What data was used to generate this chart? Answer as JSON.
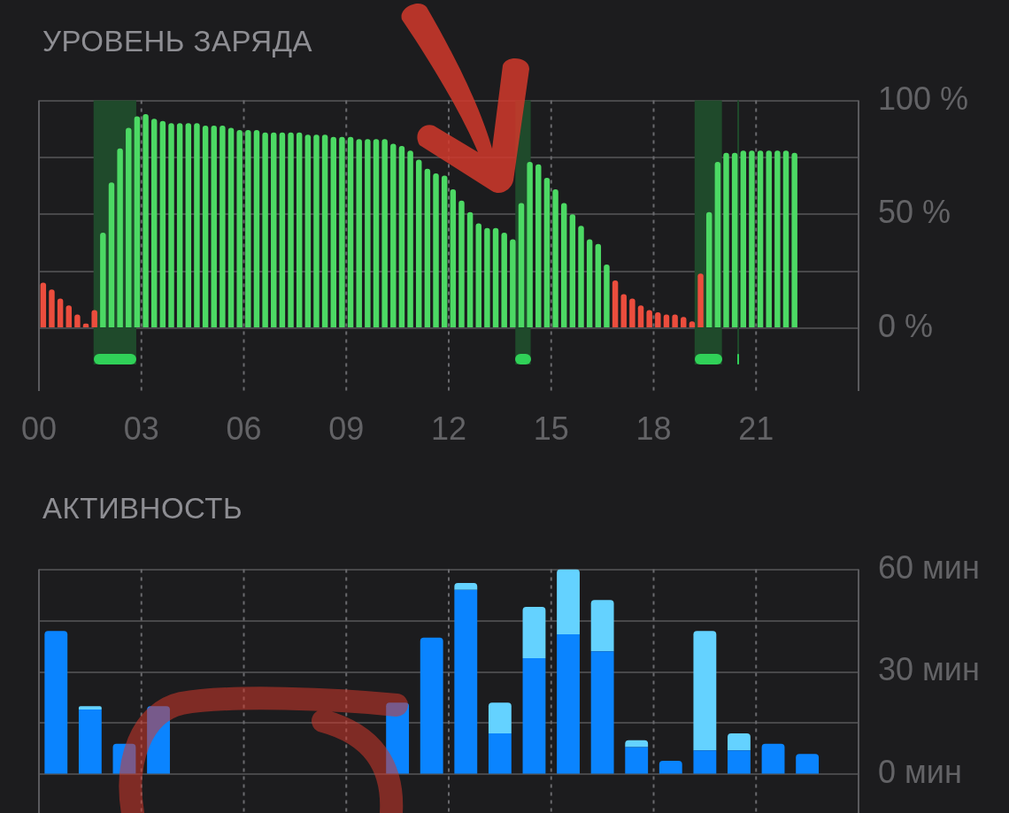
{
  "chart_data": [
    {
      "type": "bar",
      "title": "УРОВЕНЬ ЗАРЯДА",
      "x": [
        0.125,
        0.375,
        0.625,
        0.875,
        1.125,
        1.375,
        1.625,
        1.875,
        2.125,
        2.375,
        2.625,
        2.875,
        3.125,
        3.375,
        3.625,
        3.875,
        4.125,
        4.375,
        4.625,
        4.875,
        5.125,
        5.375,
        5.625,
        5.875,
        6.125,
        6.375,
        6.625,
        6.875,
        7.125,
        7.375,
        7.625,
        7.875,
        8.125,
        8.375,
        8.625,
        8.875,
        9.125,
        9.375,
        9.625,
        9.875,
        10.125,
        10.375,
        10.625,
        10.875,
        11.125,
        11.375,
        11.625,
        11.875,
        12.125,
        12.375,
        12.625,
        12.875,
        13.125,
        13.375,
        13.625,
        13.875,
        14.125,
        14.375,
        14.625,
        14.875,
        15.125,
        15.375,
        15.625,
        15.875,
        16.125,
        16.375,
        16.625,
        16.875,
        17.125,
        17.375,
        17.625,
        17.875,
        18.125,
        18.375,
        18.625,
        18.875,
        19.125,
        19.375,
        19.625,
        19.875,
        20.125,
        20.375,
        20.625,
        20.875,
        21.125,
        21.375,
        21.625,
        21.875,
        22.125
      ],
      "values": [
        20,
        17,
        13,
        10,
        6,
        2,
        8,
        42,
        64,
        79,
        88,
        93,
        94,
        92,
        91,
        90,
        90,
        90,
        90,
        89,
        89,
        89,
        88,
        87,
        87,
        87,
        86,
        86,
        86,
        86,
        86,
        85,
        85,
        85,
        84,
        84,
        84,
        83,
        83,
        83,
        83,
        81,
        80,
        78,
        74,
        70,
        68,
        67,
        61,
        56,
        51,
        46,
        44,
        44,
        42,
        39,
        55,
        73,
        72,
        66,
        61,
        55,
        50,
        45,
        39,
        37,
        28,
        21,
        15,
        13,
        10,
        8,
        7,
        6,
        6,
        5,
        3,
        24,
        51,
        73,
        77,
        77,
        78,
        78,
        78,
        78,
        78,
        78,
        77
      ],
      "colors": [
        "#eb4d3d",
        "#eb4d3d",
        "#eb4d3d",
        "#eb4d3d",
        "#eb4d3d",
        "#eb4d3d",
        "#eb4d3d",
        "#4cd964",
        "#4cd964",
        "#4cd964",
        "#4cd964",
        "#4cd964",
        "#4cd964",
        "#4cd964",
        "#4cd964",
        "#4cd964",
        "#4cd964",
        "#4cd964",
        "#4cd964",
        "#4cd964",
        "#4cd964",
        "#4cd964",
        "#4cd964",
        "#4cd964",
        "#4cd964",
        "#4cd964",
        "#4cd964",
        "#4cd964",
        "#4cd964",
        "#4cd964",
        "#4cd964",
        "#4cd964",
        "#4cd964",
        "#4cd964",
        "#4cd964",
        "#4cd964",
        "#4cd964",
        "#4cd964",
        "#4cd964",
        "#4cd964",
        "#4cd964",
        "#4cd964",
        "#4cd964",
        "#4cd964",
        "#4cd964",
        "#4cd964",
        "#4cd964",
        "#4cd964",
        "#4cd964",
        "#4cd964",
        "#4cd964",
        "#4cd964",
        "#4cd964",
        "#4cd964",
        "#4cd964",
        "#4cd964",
        "#4cd964",
        "#4cd964",
        "#4cd964",
        "#4cd964",
        "#4cd964",
        "#4cd964",
        "#4cd964",
        "#4cd964",
        "#4cd964",
        "#4cd964",
        "#4cd964",
        "#eb4d3d",
        "#eb4d3d",
        "#eb4d3d",
        "#eb4d3d",
        "#eb4d3d",
        "#eb4d3d",
        "#eb4d3d",
        "#eb4d3d",
        "#eb4d3d",
        "#eb4d3d",
        "#eb4d3d",
        "#4cd964",
        "#4cd964",
        "#4cd964",
        "#4cd964",
        "#4cd964",
        "#4cd964",
        "#4cd964",
        "#4cd964",
        "#4cd964",
        "#4cd964",
        "#4cd964"
      ],
      "xlim": [
        0,
        24
      ],
      "xticks": [
        {
          "value": 0,
          "label": "00"
        },
        {
          "value": 3,
          "label": "03"
        },
        {
          "value": 6,
          "label": "06"
        },
        {
          "value": 9,
          "label": "09"
        },
        {
          "value": 12,
          "label": "12"
        },
        {
          "value": 15,
          "label": "15"
        },
        {
          "value": 18,
          "label": "18"
        },
        {
          "value": 21,
          "label": "21"
        }
      ],
      "ylim": [
        0,
        100
      ],
      "yticks": [
        {
          "value": 0,
          "label": "0 %"
        },
        {
          "value": 25,
          "label": null
        },
        {
          "value": 50,
          "label": "50 %"
        },
        {
          "value": 75,
          "label": null
        },
        {
          "value": 100,
          "label": "100 %"
        }
      ],
      "bands": [
        {
          "axis": "x",
          "from": 1.6,
          "to": 2.85,
          "color": "#1f4a2b"
        },
        {
          "axis": "x",
          "from": 13.95,
          "to": 14.4,
          "color": "#1f4a2b"
        },
        {
          "axis": "x",
          "from": 19.2,
          "to": 20,
          "color": "#1f4a2b"
        },
        {
          "axis": "x",
          "from": 20.45,
          "to": 20.5,
          "color": "#1f4a2b"
        }
      ],
      "grid": true
    },
    {
      "type": "bar",
      "title": "АКТИВНОСТЬ",
      "stacked": true,
      "x": [
        0.5,
        1.5,
        2.5,
        3.5,
        4.5,
        5.5,
        6.5,
        7.5,
        8.5,
        9.5,
        10.5,
        11.5,
        12.5,
        13.5,
        14.5,
        15.5,
        16.5,
        17.5,
        18.5,
        19.5,
        20.5,
        21.5,
        22.5,
        23.5
      ],
      "series": [
        {
          "color": "#0a84ff",
          "values": [
            42,
            19,
            9,
            20,
            0,
            0,
            0,
            0,
            0,
            0,
            21,
            40,
            54,
            12,
            34,
            41,
            36,
            8,
            4,
            7,
            7,
            9,
            6,
            0
          ]
        },
        {
          "color": "#64d2ff",
          "values": [
            0,
            1,
            0,
            0,
            0,
            0,
            0,
            0,
            0,
            0,
            0,
            0,
            2,
            9,
            15,
            19,
            15,
            2,
            0,
            35,
            5,
            0,
            0,
            0
          ]
        }
      ],
      "xlim": [
        0,
        24
      ],
      "xticks": [
        0,
        3,
        6,
        9,
        12,
        15,
        18,
        21
      ],
      "ylim": [
        0,
        60
      ],
      "yticks": [
        {
          "value": 0,
          "label": "0 мин"
        },
        {
          "value": 15,
          "label": null
        },
        {
          "value": 30,
          "label": "30 мин"
        },
        {
          "value": 45,
          "label": null
        },
        {
          "value": 60,
          "label": "60 мин"
        }
      ],
      "tick_labels": "y",
      "grid": true
    }
  ]
}
